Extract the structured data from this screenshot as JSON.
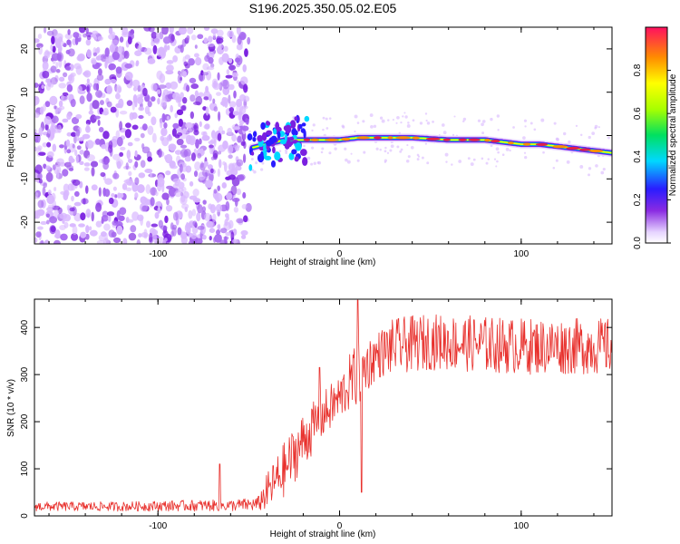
{
  "title": "S196.2025.350.05.02.E05",
  "colors": {
    "snr_line": "#e8302c",
    "spec_low": "#d9b8ff",
    "spec_mid": "#7a1fe0",
    "spec_high": "#e2204a"
  },
  "chart_data": [
    {
      "type": "heatmap",
      "name": "spectrogram",
      "xlabel": "Height of straight line (km)",
      "ylabel": "Frequency (Hz)",
      "xlim": [
        -168,
        150
      ],
      "ylim": [
        -25,
        25
      ],
      "xticks": [
        -100,
        0,
        100
      ],
      "yticks": [
        -20,
        -10,
        0,
        10,
        20
      ],
      "xtick_labels": [
        "-100",
        "0",
        "100"
      ],
      "ytick_labels": [
        "-20",
        "-10",
        "0",
        "10",
        "20"
      ],
      "noise_region_x": [
        -168,
        -50
      ],
      "ridge": {
        "x": [
          -50,
          -40,
          -30,
          -20,
          -10,
          0,
          10,
          20,
          40,
          60,
          80,
          90,
          100,
          110,
          120,
          130,
          140,
          150
        ],
        "freq": [
          -3,
          -2,
          -1,
          -1,
          -1,
          -1,
          -0.5,
          -0.5,
          -0.5,
          -1,
          -1,
          -1.5,
          -2,
          -2,
          -2.5,
          -3,
          -3.5,
          -4
        ]
      },
      "colorbar": {
        "label": "Normalized spectral amplitude",
        "range": [
          0,
          1
        ],
        "ticks": [
          0.0,
          0.2,
          0.4,
          0.6,
          0.8
        ],
        "tick_labels": [
          "0.0",
          "0.2",
          "0.4",
          "0.6",
          "0.8"
        ]
      }
    },
    {
      "type": "line",
      "name": "snr",
      "xlabel": "Height of straight line (km)",
      "ylabel": "SNR (10 * v/v)",
      "xlim": [
        -168,
        150
      ],
      "ylim": [
        0,
        460
      ],
      "xticks": [
        -100,
        0,
        100
      ],
      "yticks": [
        0,
        100,
        200,
        300,
        400
      ],
      "xtick_labels": [
        "-100",
        "0",
        "100"
      ],
      "ytick_labels": [
        "0",
        "100",
        "200",
        "300",
        "400"
      ],
      "envelope": {
        "x": [
          -168,
          -120,
          -80,
          -60,
          -45,
          -40,
          -30,
          -20,
          -10,
          0,
          5,
          10,
          20,
          30,
          50,
          100,
          150
        ],
        "mean": [
          20,
          20,
          22,
          22,
          25,
          50,
          100,
          160,
          210,
          250,
          280,
          300,
          340,
          360,
          370,
          360,
          360
        ],
        "amp": [
          10,
          10,
          12,
          12,
          15,
          40,
          60,
          60,
          50,
          50,
          60,
          70,
          50,
          60,
          60,
          60,
          60
        ]
      },
      "spikes": [
        {
          "x": -66,
          "y": 110
        },
        {
          "x": -11,
          "y": 315
        },
        {
          "x": 10,
          "y": 458
        },
        {
          "x": 12,
          "y": 50
        }
      ]
    }
  ]
}
